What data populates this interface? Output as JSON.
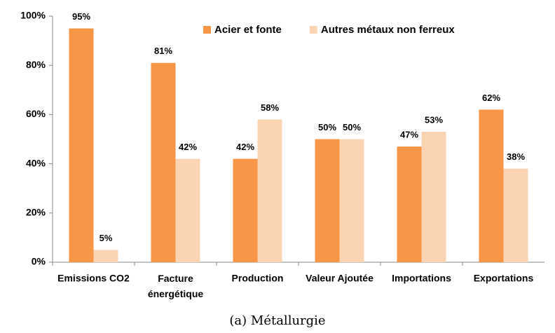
{
  "chart_data": {
    "type": "bar",
    "caption": "(a) Métallurgie",
    "categories": [
      "Emissions CO2",
      "Facture énergétique",
      "Production",
      "Valeur Ajoutée",
      "Importations",
      "Exportations"
    ],
    "series": [
      {
        "name": "Acier et fonte",
        "color": "#f79646",
        "values": [
          95,
          81,
          42,
          50,
          47,
          62
        ],
        "value_labels": [
          "95%",
          "81%",
          "42%",
          "50%",
          "47%",
          "62%"
        ]
      },
      {
        "name": "Autres métaux non ferreux",
        "color": "#fbd4b4",
        "values": [
          5,
          42,
          58,
          50,
          53,
          38
        ],
        "value_labels": [
          "5%",
          "42%",
          "58%",
          "50%",
          "53%",
          "38%"
        ]
      }
    ],
    "ylim": [
      0,
      100
    ],
    "yticks": [
      {
        "value": 0,
        "label": "0%"
      },
      {
        "value": 20,
        "label": "20%"
      },
      {
        "value": 40,
        "label": "40%"
      },
      {
        "value": 60,
        "label": "60%"
      },
      {
        "value": 80,
        "label": "80%"
      },
      {
        "value": 100,
        "label": "100%"
      }
    ],
    "grid": false,
    "legend": "top"
  }
}
